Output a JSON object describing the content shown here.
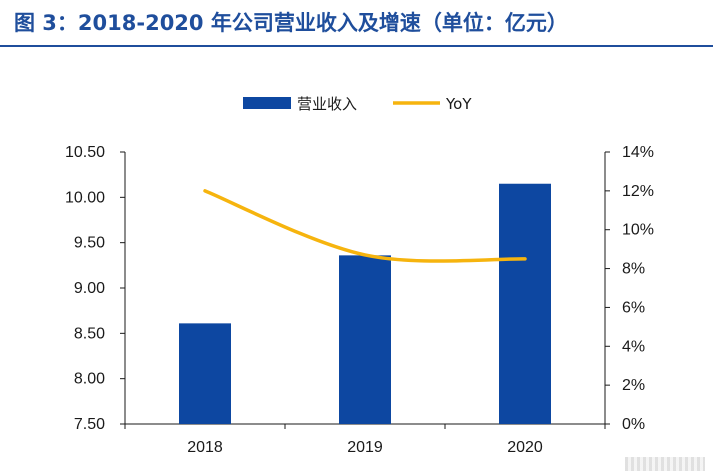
{
  "figure": {
    "title": "图 3：2018-2020 年公司营业收入及增速（单位：亿元）"
  },
  "colors": {
    "title": "#1f4e9c",
    "bar": "#0d47a1",
    "line": "#f6b40e",
    "axis": "#1a1a1a"
  },
  "chart_data": {
    "type": "bar",
    "title": "",
    "categories": [
      "2018",
      "2019",
      "2020"
    ],
    "series": [
      {
        "name": "营业收入",
        "type": "bar",
        "axis": "left",
        "values": [
          8.61,
          9.36,
          10.15
        ]
      },
      {
        "name": "YoY",
        "type": "line",
        "axis": "right",
        "values": [
          12.0,
          8.7,
          8.5
        ]
      }
    ],
    "y_left": {
      "range": [
        7.5,
        10.5
      ],
      "ticks": [
        "7.50",
        "8.00",
        "8.50",
        "9.00",
        "9.50",
        "10.00",
        "10.50"
      ]
    },
    "y_right": {
      "range": [
        0,
        14
      ],
      "ticks": [
        "0%",
        "2%",
        "4%",
        "6%",
        "8%",
        "10%",
        "12%",
        "14%"
      ]
    },
    "grid": false,
    "legend": "top-center"
  }
}
